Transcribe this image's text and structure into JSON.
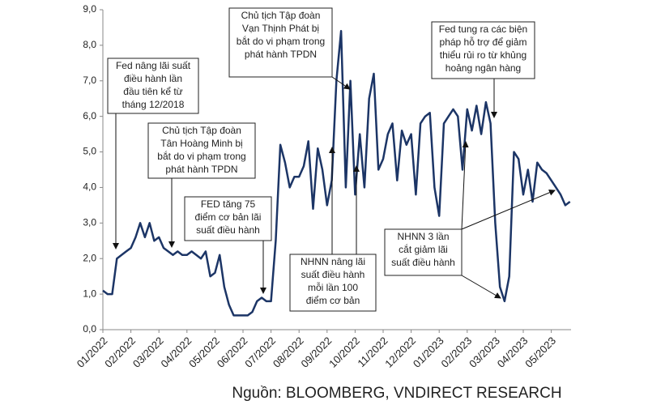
{
  "chart_data": {
    "type": "line",
    "source": "Nguồn: BLOOMBERG, VNDIRECT RESEARCH",
    "categories": [
      "01/2022",
      null,
      null,
      null,
      null,
      null,
      "02/2022",
      null,
      null,
      null,
      null,
      null,
      "03/2022",
      null,
      null,
      null,
      null,
      null,
      "04/2022",
      null,
      null,
      null,
      null,
      null,
      "05/2022",
      null,
      null,
      null,
      null,
      null,
      "06/2022",
      null,
      null,
      null,
      null,
      null,
      "07/2022",
      null,
      null,
      null,
      null,
      null,
      "08/2022",
      null,
      null,
      null,
      null,
      null,
      "09/2022",
      null,
      null,
      null,
      null,
      null,
      "10/2022",
      null,
      null,
      null,
      null,
      null,
      "11/2022",
      null,
      null,
      null,
      null,
      null,
      "12/2022",
      null,
      null,
      null,
      null,
      null,
      "01/2023",
      null,
      null,
      null,
      null,
      null,
      "02/2023",
      null,
      null,
      null,
      null,
      null,
      "03/2023",
      null,
      null,
      null,
      null,
      null,
      "04/2023",
      null,
      null,
      null,
      null,
      null,
      "05/2023",
      null,
      null,
      null,
      null
    ],
    "series": [
      {
        "color": "#1c3566",
        "values": [
          1.1,
          1.0,
          1.0,
          2.0,
          2.1,
          2.2,
          2.3,
          2.6,
          3.0,
          2.6,
          3.0,
          2.5,
          2.6,
          2.3,
          2.2,
          2.1,
          2.2,
          2.1,
          2.1,
          2.2,
          2.1,
          2.0,
          2.2,
          1.5,
          1.6,
          2.1,
          1.2,
          0.7,
          0.4,
          0.4,
          0.4,
          0.4,
          0.5,
          0.8,
          0.9,
          0.8,
          0.8,
          2.5,
          5.2,
          4.7,
          4.0,
          4.3,
          4.3,
          4.6,
          5.3,
          3.4,
          5.1,
          4.5,
          3.5,
          4.2,
          7.0,
          8.4,
          4.0,
          7.0,
          3.8,
          5.5,
          4.0,
          6.5,
          7.2,
          4.5,
          4.8,
          5.5,
          5.8,
          4.2,
          5.6,
          5.2,
          5.5,
          3.8,
          5.8,
          6.0,
          6.1,
          4.0,
          3.2,
          5.8,
          6.0,
          6.2,
          6.0,
          4.5,
          6.2,
          5.6,
          6.3,
          5.5,
          6.4,
          5.8,
          3.0,
          1.2,
          0.8,
          1.5,
          5.0,
          4.8,
          3.8,
          4.5,
          3.6,
          4.7,
          4.5,
          4.4,
          4.2,
          4.0,
          3.8,
          3.5,
          3.6
        ]
      }
    ],
    "ylim": [
      0,
      9
    ],
    "yticks": [
      {
        "value": 0,
        "label": "0,0"
      },
      {
        "value": 1,
        "label": "1,0"
      },
      {
        "value": 2,
        "label": "2,0"
      },
      {
        "value": 3,
        "label": "3,0"
      },
      {
        "value": 4,
        "label": "4,0"
      },
      {
        "value": 5,
        "label": "5,0"
      },
      {
        "value": 6,
        "label": "6,0"
      },
      {
        "value": 7,
        "label": "7,0"
      },
      {
        "value": 8,
        "label": "8,0"
      },
      {
        "value": 9,
        "label": "9,0"
      }
    ],
    "annotations": [
      {
        "lines": [
          "Fed nâng lãi suất",
          "điều hành lần",
          "đầu tiên kể từ",
          "tháng 12/2018"
        ]
      },
      {
        "lines": [
          "Chủ tịch Tập đoàn",
          "Tân Hoàng Minh bị",
          "bắt do vi phạm trong",
          "phát hành TPDN"
        ]
      },
      {
        "lines": [
          "FED tăng 75",
          "điểm cơ bản lãi",
          "suất điều hành"
        ]
      },
      {
        "lines": [
          "Chủ tịch Tập đoàn",
          "Vạn Thịnh Phát bị",
          "bắt do vi phạm trong",
          "phát hành TPDN"
        ]
      },
      {
        "lines": [
          "NHNN nâng lãi",
          "suất điều hành",
          "mỗi lần 100",
          "điểm cơ bản"
        ]
      },
      {
        "lines": [
          "Fed tung ra các biện",
          "pháp hỗ trợ để giảm",
          "thiểu rủi ro từ khủng",
          "hoảng ngân hàng"
        ]
      },
      {
        "lines": [
          "NHNN 3 lần",
          "cắt giảm lãi",
          "suất điều hành"
        ]
      }
    ]
  }
}
